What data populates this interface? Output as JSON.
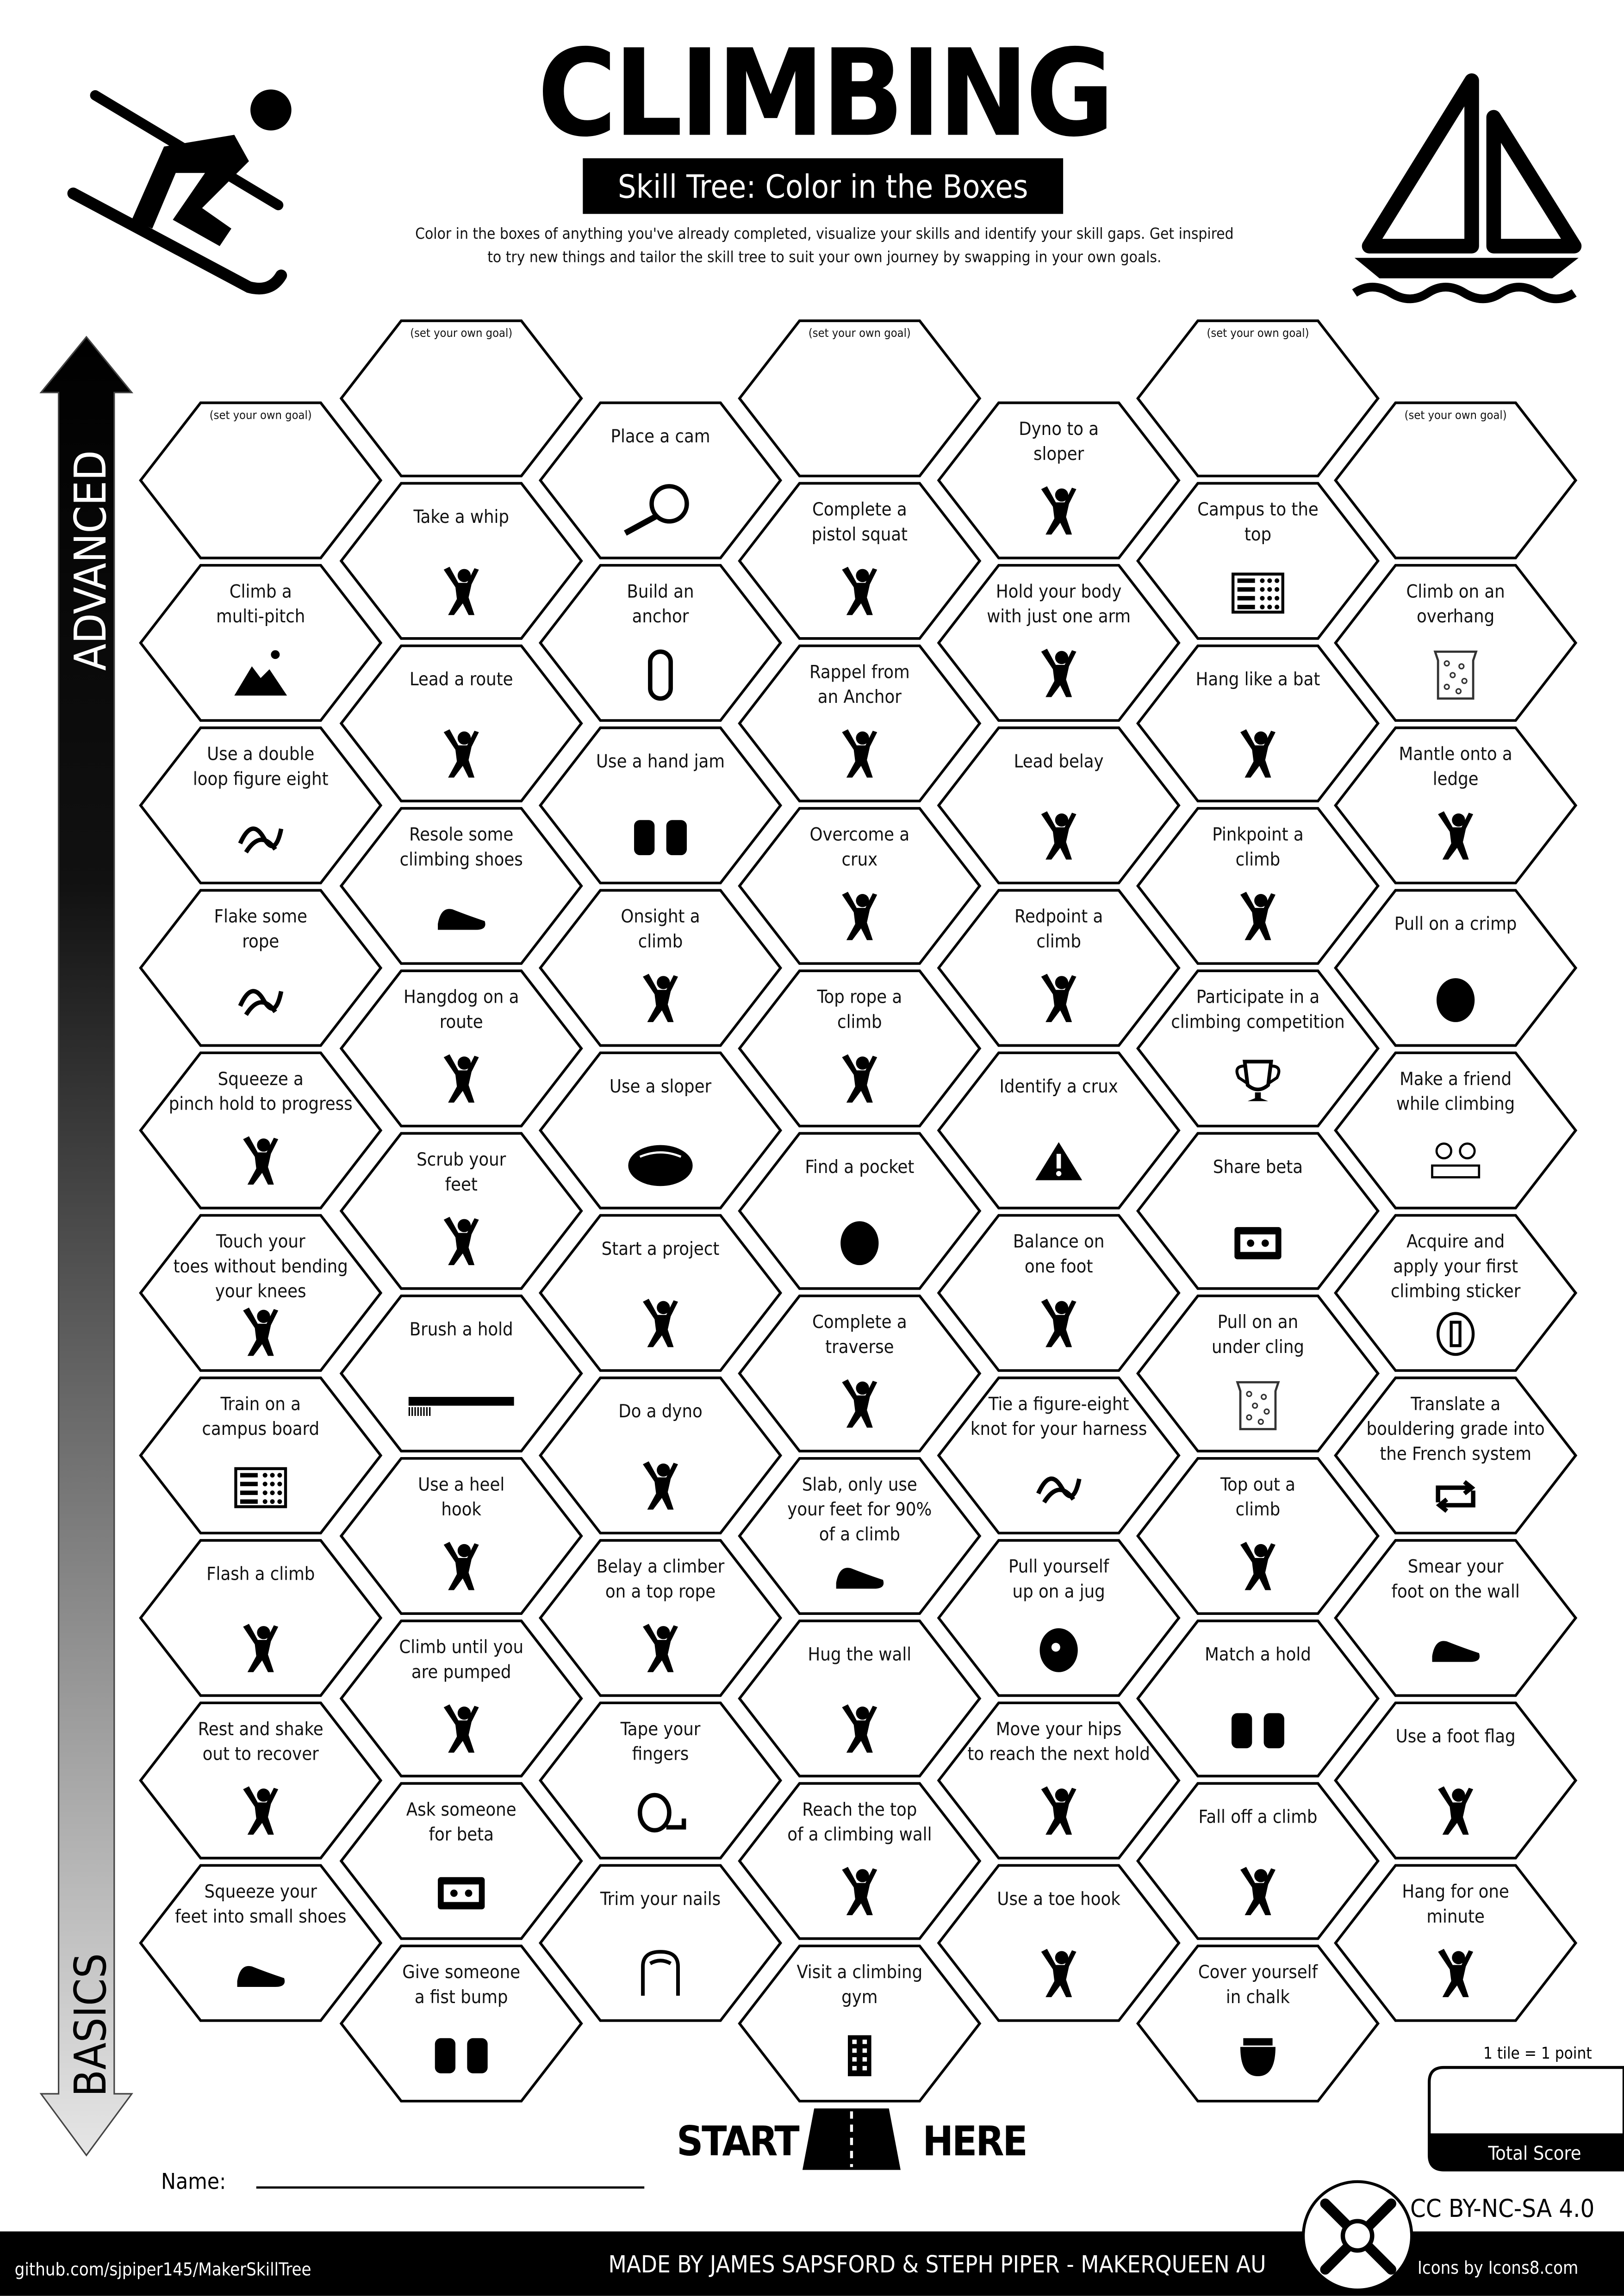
{
  "header": {
    "title": "CLIMBING",
    "subtitle": "Skill Tree: Color in the Boxes",
    "intro_line1": "Color in the boxes of anything you've already completed, visualize your skills and identify your skill gaps.  Get inspired",
    "intro_line2": "to try new things and tailor the skill tree to suit your own journey by swapping in your own goals."
  },
  "axis": {
    "top": "ADVANCED",
    "bottom": "BASICS"
  },
  "colors": {
    "ink": "#000000",
    "paper": "#ffffff",
    "arrow_bottom": "#e6e6e6"
  },
  "columns": [
    [
      {
        "goal": "(set your own goal)"
      },
      {
        "label": [
          "Climb a",
          "multi-pitch"
        ],
        "icon": "mountain"
      },
      {
        "label": [
          "Use a double",
          "loop figure eight"
        ],
        "icon": "knot"
      },
      {
        "label": [
          "Flake some",
          "rope"
        ],
        "icon": "rope"
      },
      {
        "label": [
          "Squeeze a",
          "pinch hold to progress"
        ],
        "icon": "pinch"
      },
      {
        "label": [
          "Touch your",
          "toes without bending",
          "your knees"
        ],
        "icon": "stretch"
      },
      {
        "label": [
          "Train on a",
          "campus board"
        ],
        "icon": "campus-board"
      },
      {
        "label": [
          "Flash a climb"
        ],
        "icon": "climber"
      },
      {
        "label": [
          "Rest and shake",
          "out to recover"
        ],
        "icon": "rest"
      },
      {
        "label": [
          "Squeeze your",
          "feet into small shoes"
        ],
        "icon": "shoe"
      }
    ],
    [
      {
        "goal": "(set your own goal)"
      },
      {
        "label": [
          "Take a whip"
        ],
        "icon": "falling"
      },
      {
        "label": [
          "Lead a route"
        ],
        "icon": "climber"
      },
      {
        "label": [
          "Resole some",
          "climbing shoes"
        ],
        "icon": "shoe"
      },
      {
        "label": [
          "Hangdog on a",
          "route"
        ],
        "icon": "climber"
      },
      {
        "label": [
          "Scrub your",
          "feet"
        ],
        "icon": "foot"
      },
      {
        "label": [
          "Brush a hold"
        ],
        "icon": "brush"
      },
      {
        "label": [
          "Use a heel",
          "hook"
        ],
        "icon": "heel-hook"
      },
      {
        "label": [
          "Climb until you",
          "are pumped"
        ],
        "icon": "arm"
      },
      {
        "label": [
          "Ask someone",
          "for beta"
        ],
        "icon": "cassette"
      },
      {
        "label": [
          "Give someone",
          "a fist bump"
        ],
        "icon": "fist-bump"
      }
    ],
    [
      {
        "label": [
          "Place a cam"
        ],
        "icon": "cam"
      },
      {
        "label": [
          "Build an",
          "anchor"
        ],
        "icon": "carabiner"
      },
      {
        "label": [
          "Use a hand jam"
        ],
        "icon": "hand-jam"
      },
      {
        "label": [
          "Onsight a",
          "climb"
        ],
        "icon": "climber"
      },
      {
        "label": [
          "Use a sloper"
        ],
        "icon": "sloper"
      },
      {
        "label": [
          "Start a project"
        ],
        "icon": "climber"
      },
      {
        "label": [
          "Do a dyno"
        ],
        "icon": "jumping"
      },
      {
        "label": [
          "Belay a climber",
          "on a top rope"
        ],
        "icon": "belayer"
      },
      {
        "label": [
          "Tape your",
          "fingers"
        ],
        "icon": "tape"
      },
      {
        "label": [
          "Trim your nails"
        ],
        "icon": "nail"
      }
    ],
    [
      {
        "goal": "(set your own goal)"
      },
      {
        "label": [
          "Complete a",
          "pistol squat"
        ],
        "icon": "squat"
      },
      {
        "label": [
          "Rappel from",
          "an Anchor"
        ],
        "icon": "rappel"
      },
      {
        "label": [
          "Overcome a",
          "crux"
        ],
        "icon": "jumping"
      },
      {
        "label": [
          "Top rope a",
          "climb"
        ],
        "icon": "belayer"
      },
      {
        "label": [
          "Find a pocket"
        ],
        "icon": "pocket"
      },
      {
        "label": [
          "Complete a",
          "traverse"
        ],
        "icon": "climber"
      },
      {
        "label": [
          "Slab, only use",
          "your feet for 90%",
          "of a climb"
        ],
        "icon": "shoe"
      },
      {
        "label": [
          "Hug the wall"
        ],
        "icon": "climber"
      },
      {
        "label": [
          "Reach the top",
          "of a climbing wall"
        ],
        "icon": "climber"
      },
      {
        "label": [
          "Visit a climbing",
          "gym"
        ],
        "icon": "building"
      }
    ],
    [
      {
        "label": [
          "Dyno to a",
          "sloper"
        ],
        "icon": "jumping"
      },
      {
        "label": [
          "Hold your body",
          "with just one arm"
        ],
        "icon": "hanging"
      },
      {
        "label": [
          "Lead belay"
        ],
        "icon": "belayer"
      },
      {
        "label": [
          "Redpoint a",
          "climb"
        ],
        "icon": "climber"
      },
      {
        "label": [
          "Identify a crux"
        ],
        "icon": "warning"
      },
      {
        "label": [
          "Balance on",
          "one foot"
        ],
        "icon": "balance"
      },
      {
        "label": [
          "Tie a figure-eight",
          "knot for your harness"
        ],
        "icon": "knot"
      },
      {
        "label": [
          "Pull yourself",
          "up on a jug"
        ],
        "icon": "jug"
      },
      {
        "label": [
          "Move your hips",
          "to reach the next hold"
        ],
        "icon": "climber"
      },
      {
        "label": [
          "Use a toe hook"
        ],
        "icon": "heel-hook"
      }
    ],
    [
      {
        "goal": "(set your own goal)"
      },
      {
        "label": [
          "Campus to the",
          "top"
        ],
        "icon": "campus-board"
      },
      {
        "label": [
          "Hang like a bat"
        ],
        "icon": "bat"
      },
      {
        "label": [
          "Pinkpoint a",
          "climb"
        ],
        "icon": "climber"
      },
      {
        "label": [
          "Participate in a",
          "climbing competition"
        ],
        "icon": "trophy"
      },
      {
        "label": [
          "Share beta"
        ],
        "icon": "cassette"
      },
      {
        "label": [
          "Pull on an",
          "under cling"
        ],
        "icon": "climbing-wall"
      },
      {
        "label": [
          "Top out a",
          "climb"
        ],
        "icon": "climber"
      },
      {
        "label": [
          "Match a hold"
        ],
        "icon": "match-hands"
      },
      {
        "label": [
          "Fall off a climb"
        ],
        "icon": "falling"
      },
      {
        "label": [
          "Cover yourself",
          "in chalk"
        ],
        "icon": "chalk-bag"
      }
    ],
    [
      {
        "goal": "(set your own goal)"
      },
      {
        "label": [
          "Climb on an",
          "overhang"
        ],
        "icon": "climbing-wall"
      },
      {
        "label": [
          "Mantle onto a",
          "ledge"
        ],
        "icon": "mantle"
      },
      {
        "label": [
          "Pull on a crimp"
        ],
        "icon": "crimp"
      },
      {
        "label": [
          "Make a friend",
          "while climbing"
        ],
        "icon": "friends"
      },
      {
        "label": [
          "Acquire and",
          "apply your first",
          "climbing sticker"
        ],
        "icon": "sticker"
      },
      {
        "label": [
          "Translate a",
          "bouldering grade into",
          "the French system"
        ],
        "icon": "repeat"
      },
      {
        "label": [
          "Smear your",
          "foot on the wall"
        ],
        "icon": "shoe"
      },
      {
        "label": [
          "Use a foot flag"
        ],
        "icon": "jumping"
      },
      {
        "label": [
          "Hang for one",
          "minute"
        ],
        "icon": "climber"
      }
    ]
  ],
  "start": {
    "left": "START",
    "right": "HERE"
  },
  "name_label": "Name:",
  "score": {
    "rule": "1 tile = 1 point",
    "label": "Total Score"
  },
  "footer": {
    "repo": "github.com/sjpiper145/MakerSkillTree",
    "credits": "MADE BY JAMES SAPSFORD & STEPH PIPER  -  MAKERQUEEN AU",
    "license": "CC BY-NC-SA 4.0",
    "icons_credit": "Icons by Icons8.com"
  }
}
